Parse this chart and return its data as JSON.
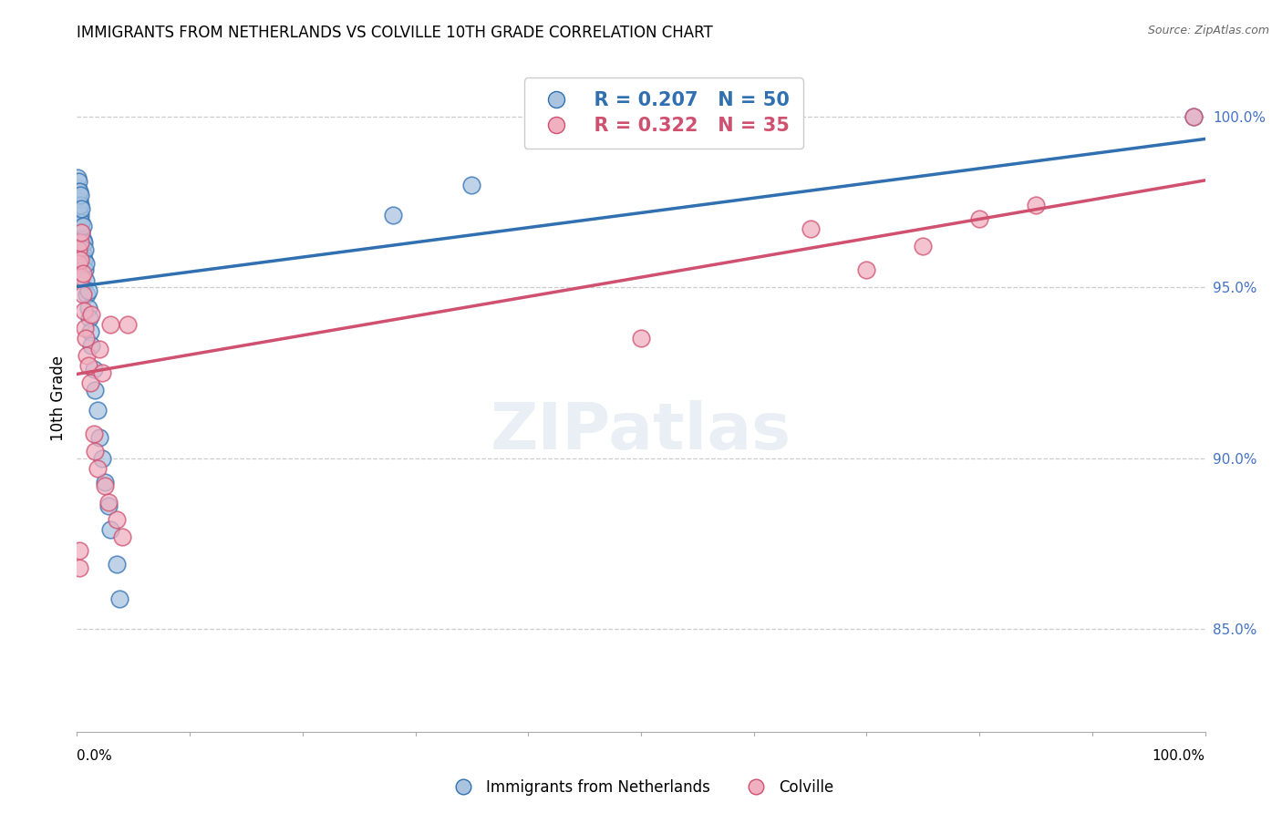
{
  "title": "IMMIGRANTS FROM NETHERLANDS VS COLVILLE 10TH GRADE CORRELATION CHART",
  "source": "Source: ZipAtlas.com",
  "ylabel": "10th Grade",
  "legend_blue_r": "R = 0.207",
  "legend_blue_n": "N = 50",
  "legend_pink_r": "R = 0.322",
  "legend_pink_n": "N = 35",
  "blue_color": "#aac4e0",
  "pink_color": "#f0b0c0",
  "blue_line_color": "#3070b0",
  "pink_line_color": "#d05070",
  "blue_scatter": {
    "x": [
      0.0005,
      0.0005,
      0.0008,
      0.001,
      0.001,
      0.001,
      0.001,
      0.0015,
      0.0015,
      0.002,
      0.002,
      0.002,
      0.002,
      0.003,
      0.003,
      0.003,
      0.003,
      0.003,
      0.004,
      0.004,
      0.004,
      0.004,
      0.005,
      0.005,
      0.005,
      0.006,
      0.006,
      0.007,
      0.007,
      0.008,
      0.008,
      0.009,
      0.01,
      0.01,
      0.011,
      0.012,
      0.013,
      0.015,
      0.016,
      0.018,
      0.02,
      0.022,
      0.025,
      0.028,
      0.03,
      0.035,
      0.038,
      0.28,
      0.35,
      0.99
    ],
    "y": [
      0.979,
      0.982,
      0.976,
      0.972,
      0.975,
      0.978,
      0.981,
      0.97,
      0.974,
      0.967,
      0.971,
      0.975,
      0.978,
      0.965,
      0.968,
      0.971,
      0.974,
      0.977,
      0.963,
      0.966,
      0.969,
      0.973,
      0.96,
      0.964,
      0.968,
      0.958,
      0.963,
      0.955,
      0.961,
      0.952,
      0.957,
      0.948,
      0.944,
      0.949,
      0.941,
      0.937,
      0.933,
      0.926,
      0.92,
      0.914,
      0.906,
      0.9,
      0.893,
      0.886,
      0.879,
      0.869,
      0.859,
      0.971,
      0.98,
      1.0
    ]
  },
  "pink_scatter": {
    "x": [
      0.001,
      0.001,
      0.002,
      0.002,
      0.003,
      0.003,
      0.004,
      0.004,
      0.005,
      0.005,
      0.006,
      0.007,
      0.008,
      0.009,
      0.01,
      0.012,
      0.013,
      0.015,
      0.016,
      0.018,
      0.02,
      0.022,
      0.025,
      0.028,
      0.03,
      0.035,
      0.04,
      0.045,
      0.5,
      0.65,
      0.7,
      0.75,
      0.8,
      0.85,
      0.99
    ],
    "y": [
      0.961,
      0.957,
      0.868,
      0.873,
      0.963,
      0.958,
      0.953,
      0.966,
      0.948,
      0.954,
      0.943,
      0.938,
      0.935,
      0.93,
      0.927,
      0.922,
      0.942,
      0.907,
      0.902,
      0.897,
      0.932,
      0.925,
      0.892,
      0.887,
      0.939,
      0.882,
      0.877,
      0.939,
      0.935,
      0.967,
      0.955,
      0.962,
      0.97,
      0.974,
      1.0
    ]
  },
  "ytick_values": [
    0.85,
    0.9,
    0.95,
    1.0
  ],
  "ytick_labels": [
    "85.0%",
    "90.0%",
    "95.0%",
    "100.0%"
  ],
  "xmin": 0.0,
  "xmax": 1.0,
  "ymin": 0.82,
  "ymax": 1.015
}
